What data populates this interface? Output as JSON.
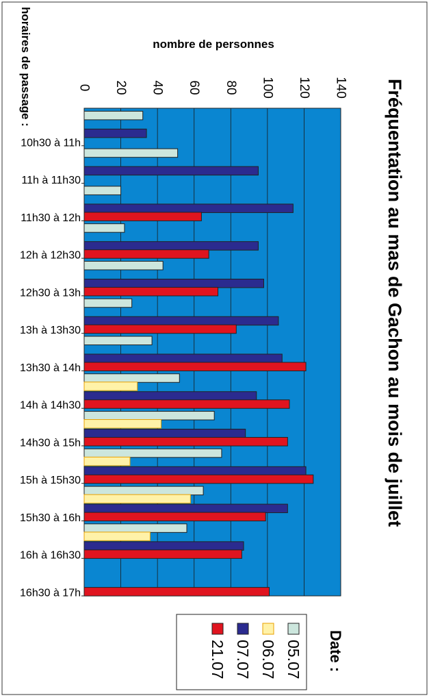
{
  "chart_data": {
    "type": "bar",
    "orientation": "horizontal",
    "title": "Fréquentation au mas de Gachon au mois de juillet",
    "xlabel": "nombre de personnes",
    "ylabel": "horaires de passage :",
    "legend_title": "Date :",
    "xlim": [
      0,
      140
    ],
    "x_ticks": [
      0,
      20,
      40,
      60,
      80,
      100,
      120,
      140
    ],
    "grid": true,
    "legend_position": "bottom-right",
    "categories": [
      "10h30 à 11h",
      "11h à 11h30",
      "11h30 à 12h",
      "12h à 12h30",
      "12h30 à 13h",
      "13h à 13h30",
      "13h30 à 14h",
      "14h à 14h30",
      "14h30 à 15h",
      "15h à 15h30",
      "15h30 à 16h",
      "16h à 16h30",
      "16h30 à 17h"
    ],
    "series": [
      {
        "name": "05.07",
        "color": "#cce6dd",
        "values": [
          32,
          51,
          20,
          22,
          43,
          26,
          37,
          52,
          71,
          75,
          65,
          56,
          null
        ]
      },
      {
        "name": "06.07",
        "color": "#fff2a8",
        "values": [
          null,
          null,
          null,
          null,
          null,
          null,
          null,
          29,
          42,
          25,
          58,
          36,
          null
        ]
      },
      {
        "name": "07.07",
        "color": "#2b2b8f",
        "values": [
          34,
          95,
          114,
          95,
          98,
          106,
          108,
          94,
          88,
          121,
          111,
          87,
          null
        ]
      },
      {
        "name": "21.07",
        "color": "#e0141f",
        "values": [
          null,
          null,
          64,
          68,
          73,
          83,
          121,
          112,
          111,
          125,
          99,
          86,
          101
        ]
      }
    ],
    "plot_background": "#0a86d1"
  }
}
